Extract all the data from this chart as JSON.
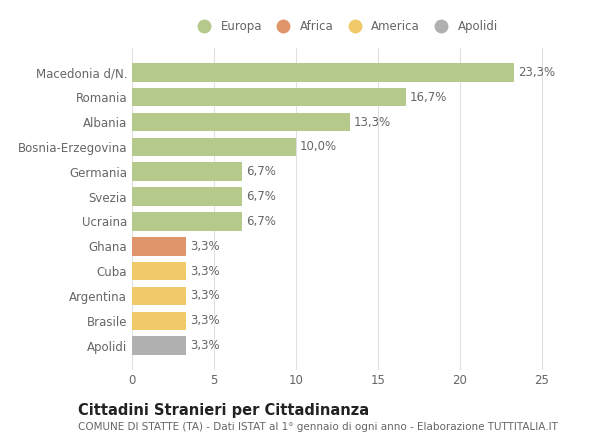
{
  "categories": [
    "Macedonia d/N.",
    "Romania",
    "Albania",
    "Bosnia-Erzegovina",
    "Germania",
    "Svezia",
    "Ucraina",
    "Ghana",
    "Cuba",
    "Argentina",
    "Brasile",
    "Apolidi"
  ],
  "values": [
    23.3,
    16.7,
    13.3,
    10.0,
    6.7,
    6.7,
    6.7,
    3.3,
    3.3,
    3.3,
    3.3,
    3.3
  ],
  "labels": [
    "23,3%",
    "16,7%",
    "13,3%",
    "10,0%",
    "6,7%",
    "6,7%",
    "6,7%",
    "3,3%",
    "3,3%",
    "3,3%",
    "3,3%",
    "3,3%"
  ],
  "colors": [
    "#b5c98a",
    "#b5c98a",
    "#b5c98a",
    "#b5c98a",
    "#b5c98a",
    "#b5c98a",
    "#b5c98a",
    "#e0956a",
    "#f0c96a",
    "#f0c96a",
    "#f0c96a",
    "#b0b0b0"
  ],
  "legend": [
    {
      "label": "Europa",
      "color": "#b5c98a"
    },
    {
      "label": "Africa",
      "color": "#e0956a"
    },
    {
      "label": "America",
      "color": "#f0c96a"
    },
    {
      "label": "Apolidi",
      "color": "#b0b0b0"
    }
  ],
  "xlim": [
    0,
    26
  ],
  "xticks": [
    0,
    5,
    10,
    15,
    20,
    25
  ],
  "title": "Cittadini Stranieri per Cittadinanza",
  "subtitle": "COMUNE DI STATTE (TA) - Dati ISTAT al 1° gennaio di ogni anno - Elaborazione TUTTITALIA.IT",
  "background_color": "#ffffff",
  "grid_color": "#e0e0e0",
  "bar_height": 0.75,
  "label_fontsize": 8.5,
  "tick_fontsize": 8.5,
  "title_fontsize": 10.5,
  "subtitle_fontsize": 7.5,
  "text_color": "#666666"
}
